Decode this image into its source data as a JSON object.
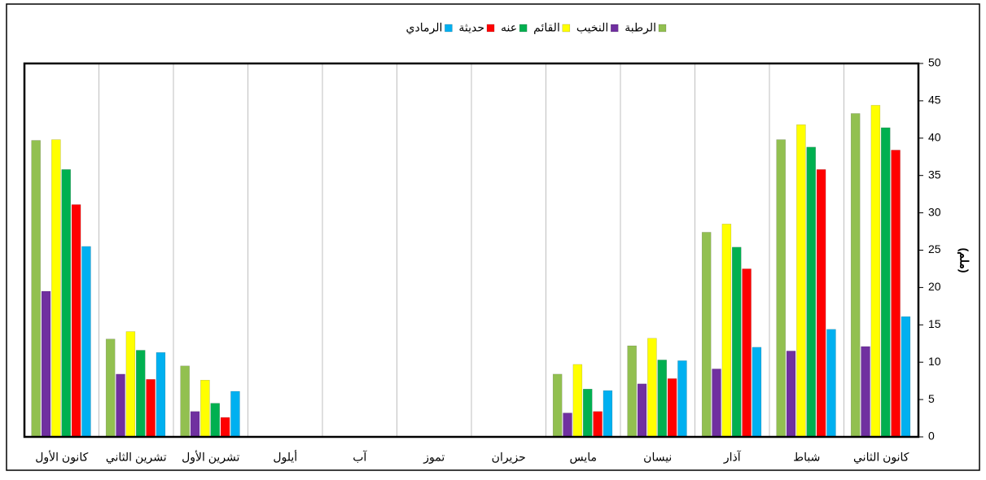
{
  "chart_data": {
    "type": "bar",
    "y_label": "(ملم)",
    "categories": [
      "كانون الثاني",
      "شباط",
      "آذار",
      "نيسان",
      "مايس",
      "حزيران",
      "تموز",
      "آب",
      "أيلول",
      "تشرين الأول",
      "تشرين الثاني",
      "كانون الأول"
    ],
    "series": [
      {
        "name": "الرطبة",
        "color": "#92c050",
        "values": [
          43.3,
          39.8,
          27.4,
          12.2,
          8.4,
          0,
          0,
          0,
          0,
          9.5,
          13.1,
          39.7
        ]
      },
      {
        "name": "النخيب",
        "color": "#7030a0",
        "values": [
          12.1,
          11.5,
          9.1,
          7.1,
          3.2,
          0,
          0,
          0,
          0,
          3.4,
          8.4,
          19.5
        ]
      },
      {
        "name": "القائم",
        "color": "#ffff00",
        "values": [
          44.4,
          41.8,
          28.5,
          13.2,
          9.7,
          0,
          0,
          0,
          0,
          7.6,
          14.1,
          39.8
        ]
      },
      {
        "name": "عنه",
        "color": "#00b050",
        "values": [
          41.4,
          38.8,
          25.4,
          10.3,
          6.4,
          0,
          0,
          0,
          0,
          4.5,
          11.6,
          35.8
        ]
      },
      {
        "name": "حديثة",
        "color": "#ff0000",
        "values": [
          38.4,
          35.8,
          22.5,
          7.8,
          3.4,
          0,
          0,
          0,
          0,
          2.6,
          7.7,
          31.1
        ]
      },
      {
        "name": "الرمادي",
        "color": "#00b0f0",
        "values": [
          16.1,
          14.4,
          12.0,
          10.2,
          6.2,
          0,
          0,
          0,
          0,
          6.1,
          11.3,
          25.5
        ]
      }
    ],
    "ylim": [
      0,
      50
    ],
    "yticks": [
      0,
      5,
      10,
      15,
      20,
      25,
      30,
      35,
      40,
      45,
      50
    ],
    "y_axis_side": "right",
    "x_direction": "rtl",
    "grid": "vertical",
    "legend": "top"
  }
}
